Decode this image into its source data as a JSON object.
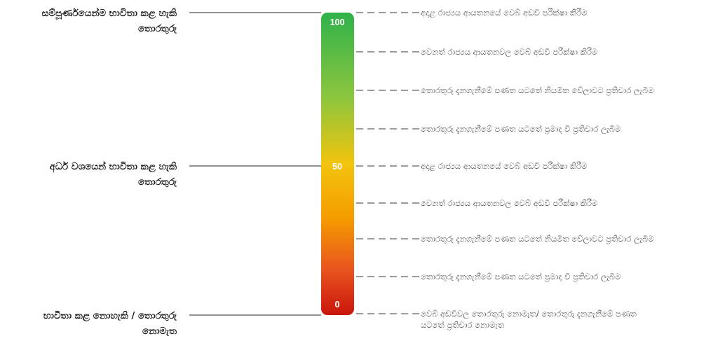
{
  "scale": {
    "min": 0,
    "max": 100,
    "top_label": "100",
    "middle_label": "50",
    "bottom_label": "0",
    "gradient_colors": [
      "#2fb24a",
      "#8cc63f",
      "#f2c40d",
      "#f59c00",
      "#e8541e",
      "#c9150c"
    ]
  },
  "left_labels": [
    {
      "line1": "සම්පූර්ණයෙන්ම භාවිතා කළ හැකි",
      "line2": "තොරතුරු",
      "value": 100
    },
    {
      "line1": "අර්ධ වශයෙන් භාවිතා කළ හැකි",
      "line2": "තොරතුරු",
      "value": 50
    },
    {
      "line1": "භාවිතා කළ නොහැකි / තොරතුරු",
      "line2": "නොමැත",
      "value": 0
    }
  ],
  "right_labels": [
    {
      "line1": "අදාළ රාජ්‍යය ආයතනයේ වෙබ් අඩවි පරීක්ෂා කිරීම",
      "line2": ""
    },
    {
      "line1": "වෙනත් රාජ්‍යය ආයතනවල වෙබ් අඩවි පරීක්ෂා කිරීම",
      "line2": ""
    },
    {
      "line1": "තොරතුරු දැනගැනීමේ පණත යටතේ නියමිත වේලාවට ප්‍රතිචාර ලැබීම",
      "line2": ""
    },
    {
      "line1": "තොරතුරු දැනගැනීමේ පණත යටතේ ප්‍රමාද වී ප්‍රතිචාර ලැබීම",
      "line2": ""
    },
    {
      "line1": "අදාළ රාජ්‍යය ආයතනයේ වෙබ් අඩවි පරීක්ෂා කිරීම",
      "line2": ""
    },
    {
      "line1": "වෙනත් රාජ්‍යය ආයතනවල වෙබ් අඩවි පරීක්ෂා කිරීම",
      "line2": ""
    },
    {
      "line1": "තොරතුරු දැනගැනීමේ පණත යටතේ නියමිත වේලාවට ප්‍රතිචාර ලැබීම",
      "line2": ""
    },
    {
      "line1": "තොරතුරු දැනගැනීමේ පණත යටතේ ප්‍රමාද වී ප්‍රතිචාර ලැබීම",
      "line2": ""
    },
    {
      "line1": "වෙබ් අඩවිවල තොරතුරු නොමැත/ තොරතුරු දැනගැනීමේ පණත",
      "line2": "යටතේ ප්‍රතිචාර නොමැත"
    }
  ],
  "colors": {
    "connector_line": "#6e6e6e",
    "dashed_line": "#7a7a7a",
    "scale_text": "#ffffff"
  }
}
